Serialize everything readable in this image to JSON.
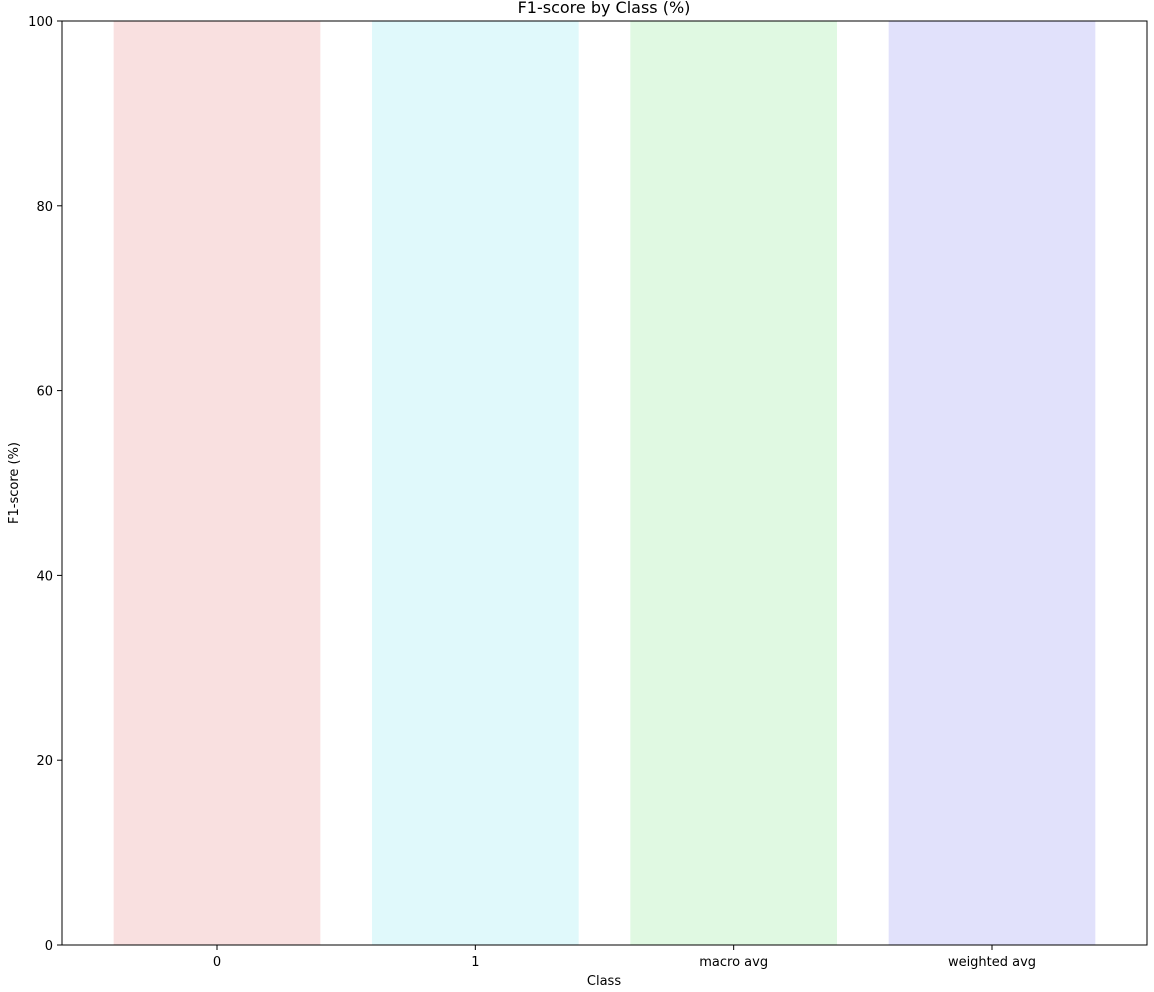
{
  "chart_data": {
    "type": "bar",
    "title": "F1-score by Class (%)",
    "xlabel": "Class",
    "ylabel": "F1-score (%)",
    "categories": [
      "0",
      "1",
      "macro avg",
      "weighted avg"
    ],
    "values": [
      100,
      100,
      100,
      100
    ],
    "ylim": [
      0,
      100
    ],
    "yticks": [
      "0",
      "20",
      "40",
      "60",
      "80",
      "100"
    ],
    "colors": [
      "#f9e0e0",
      "#e0f9fb",
      "#e0f9e2",
      "#e1e1fb"
    ],
    "grid": false,
    "legend": "none"
  }
}
